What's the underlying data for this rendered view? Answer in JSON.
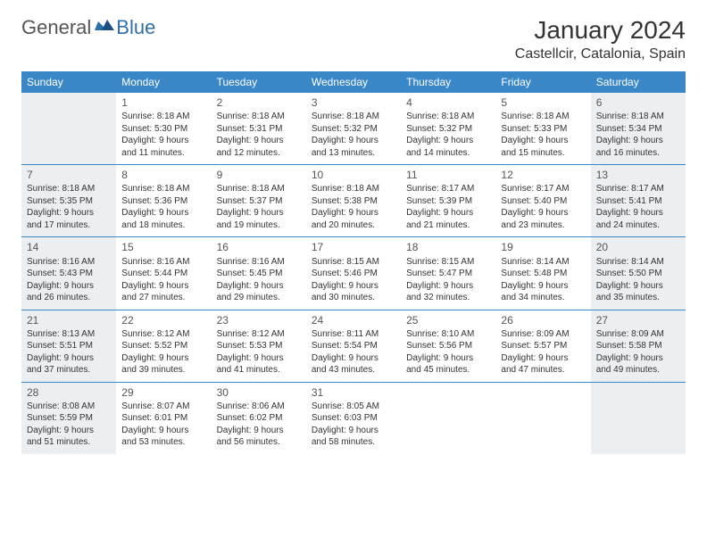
{
  "brand": {
    "word1": "General",
    "word2": "Blue"
  },
  "title": "January 2024",
  "location": "Castellcir, Catalonia, Spain",
  "colors": {
    "header_bg": "#3a87c8",
    "header_text": "#ffffff",
    "weekend_bg": "#eceff2",
    "rule": "#3a87c8",
    "text": "#333333",
    "logo_gray": "#555555",
    "logo_blue": "#2f6fa8"
  },
  "day_headers": [
    "Sunday",
    "Monday",
    "Tuesday",
    "Wednesday",
    "Thursday",
    "Friday",
    "Saturday"
  ],
  "weeks": [
    [
      null,
      {
        "n": "1",
        "sr": "8:18 AM",
        "ss": "5:30 PM",
        "dl": "9 hours and 11 minutes."
      },
      {
        "n": "2",
        "sr": "8:18 AM",
        "ss": "5:31 PM",
        "dl": "9 hours and 12 minutes."
      },
      {
        "n": "3",
        "sr": "8:18 AM",
        "ss": "5:32 PM",
        "dl": "9 hours and 13 minutes."
      },
      {
        "n": "4",
        "sr": "8:18 AM",
        "ss": "5:32 PM",
        "dl": "9 hours and 14 minutes."
      },
      {
        "n": "5",
        "sr": "8:18 AM",
        "ss": "5:33 PM",
        "dl": "9 hours and 15 minutes."
      },
      {
        "n": "6",
        "sr": "8:18 AM",
        "ss": "5:34 PM",
        "dl": "9 hours and 16 minutes."
      }
    ],
    [
      {
        "n": "7",
        "sr": "8:18 AM",
        "ss": "5:35 PM",
        "dl": "9 hours and 17 minutes."
      },
      {
        "n": "8",
        "sr": "8:18 AM",
        "ss": "5:36 PM",
        "dl": "9 hours and 18 minutes."
      },
      {
        "n": "9",
        "sr": "8:18 AM",
        "ss": "5:37 PM",
        "dl": "9 hours and 19 minutes."
      },
      {
        "n": "10",
        "sr": "8:18 AM",
        "ss": "5:38 PM",
        "dl": "9 hours and 20 minutes."
      },
      {
        "n": "11",
        "sr": "8:17 AM",
        "ss": "5:39 PM",
        "dl": "9 hours and 21 minutes."
      },
      {
        "n": "12",
        "sr": "8:17 AM",
        "ss": "5:40 PM",
        "dl": "9 hours and 23 minutes."
      },
      {
        "n": "13",
        "sr": "8:17 AM",
        "ss": "5:41 PM",
        "dl": "9 hours and 24 minutes."
      }
    ],
    [
      {
        "n": "14",
        "sr": "8:16 AM",
        "ss": "5:43 PM",
        "dl": "9 hours and 26 minutes."
      },
      {
        "n": "15",
        "sr": "8:16 AM",
        "ss": "5:44 PM",
        "dl": "9 hours and 27 minutes."
      },
      {
        "n": "16",
        "sr": "8:16 AM",
        "ss": "5:45 PM",
        "dl": "9 hours and 29 minutes."
      },
      {
        "n": "17",
        "sr": "8:15 AM",
        "ss": "5:46 PM",
        "dl": "9 hours and 30 minutes."
      },
      {
        "n": "18",
        "sr": "8:15 AM",
        "ss": "5:47 PM",
        "dl": "9 hours and 32 minutes."
      },
      {
        "n": "19",
        "sr": "8:14 AM",
        "ss": "5:48 PM",
        "dl": "9 hours and 34 minutes."
      },
      {
        "n": "20",
        "sr": "8:14 AM",
        "ss": "5:50 PM",
        "dl": "9 hours and 35 minutes."
      }
    ],
    [
      {
        "n": "21",
        "sr": "8:13 AM",
        "ss": "5:51 PM",
        "dl": "9 hours and 37 minutes."
      },
      {
        "n": "22",
        "sr": "8:12 AM",
        "ss": "5:52 PM",
        "dl": "9 hours and 39 minutes."
      },
      {
        "n": "23",
        "sr": "8:12 AM",
        "ss": "5:53 PM",
        "dl": "9 hours and 41 minutes."
      },
      {
        "n": "24",
        "sr": "8:11 AM",
        "ss": "5:54 PM",
        "dl": "9 hours and 43 minutes."
      },
      {
        "n": "25",
        "sr": "8:10 AM",
        "ss": "5:56 PM",
        "dl": "9 hours and 45 minutes."
      },
      {
        "n": "26",
        "sr": "8:09 AM",
        "ss": "5:57 PM",
        "dl": "9 hours and 47 minutes."
      },
      {
        "n": "27",
        "sr": "8:09 AM",
        "ss": "5:58 PM",
        "dl": "9 hours and 49 minutes."
      }
    ],
    [
      {
        "n": "28",
        "sr": "8:08 AM",
        "ss": "5:59 PM",
        "dl": "9 hours and 51 minutes."
      },
      {
        "n": "29",
        "sr": "8:07 AM",
        "ss": "6:01 PM",
        "dl": "9 hours and 53 minutes."
      },
      {
        "n": "30",
        "sr": "8:06 AM",
        "ss": "6:02 PM",
        "dl": "9 hours and 56 minutes."
      },
      {
        "n": "31",
        "sr": "8:05 AM",
        "ss": "6:03 PM",
        "dl": "9 hours and 58 minutes."
      },
      null,
      null,
      null
    ]
  ],
  "labels": {
    "sunrise": "Sunrise: ",
    "sunset": "Sunset: ",
    "daylight": "Daylight: "
  }
}
